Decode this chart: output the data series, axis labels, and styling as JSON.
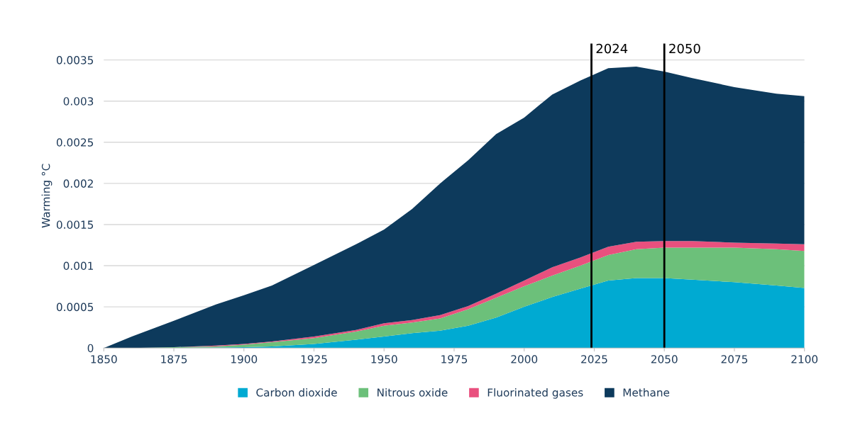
{
  "chart_data": {
    "type": "area",
    "stacked": true,
    "ylabel": "Warming °C",
    "x": [
      1850,
      1860,
      1875,
      1890,
      1900,
      1910,
      1925,
      1940,
      1950,
      1960,
      1970,
      1980,
      1990,
      2000,
      2010,
      2020,
      2030,
      2040,
      2050,
      2060,
      2075,
      2090,
      2100
    ],
    "series": [
      {
        "name": "Carbon dioxide",
        "color": "#00aad2",
        "values": [
          0,
          0,
          0,
          5e-06,
          1e-05,
          2e-05,
          5e-05,
          0.0001,
          0.00014,
          0.00018,
          0.00021,
          0.00027,
          0.00037,
          0.0005,
          0.00062,
          0.00072,
          0.00082,
          0.00085,
          0.00085,
          0.00083,
          0.0008,
          0.00076,
          0.00073
        ]
      },
      {
        "name": "Nitrous oxide",
        "color": "#6cc07a",
        "values": [
          0,
          0,
          1e-05,
          1.5e-05,
          3e-05,
          5e-05,
          7e-05,
          0.0001,
          0.00013,
          0.00013,
          0.00015,
          0.0002,
          0.00024,
          0.00025,
          0.00026,
          0.00028,
          0.00031,
          0.00035,
          0.00037,
          0.00039,
          0.00042,
          0.00044,
          0.00045
        ]
      },
      {
        "name": "Fluorinated gases",
        "color": "#e9507e",
        "values": [
          0,
          0,
          0,
          1e-05,
          1e-05,
          1e-05,
          2e-05,
          2e-05,
          3e-05,
          3e-05,
          4e-05,
          4e-05,
          5e-05,
          7e-05,
          0.0001,
          0.0001,
          0.0001,
          9e-05,
          8e-05,
          8e-05,
          6e-05,
          7e-05,
          8e-05
        ]
      },
      {
        "name": "Methane",
        "color": "#0d3a5c",
        "values": [
          0,
          0.00014,
          0.00032,
          0.0005,
          0.00059,
          0.00068,
          0.00087,
          0.00104,
          0.00114,
          0.00135,
          0.0016,
          0.00177,
          0.00194,
          0.00198,
          0.0021,
          0.00215,
          0.00217,
          0.00213,
          0.00206,
          0.00198,
          0.00189,
          0.00182,
          0.0018
        ]
      }
    ],
    "xlim": [
      1850,
      2100
    ],
    "xticks": [
      1850,
      1875,
      1900,
      1925,
      1950,
      1975,
      2000,
      2025,
      2050,
      2075,
      2100
    ],
    "ylim": [
      0,
      0.0037
    ],
    "yticks": [
      0,
      0.0005,
      0.001,
      0.0015,
      0.002,
      0.0025,
      0.003,
      0.0035
    ],
    "grid": "y",
    "legend": "bottom",
    "ref_lines": [
      {
        "axis": "x",
        "value": 2024,
        "label": "2024",
        "color": "#000000"
      },
      {
        "axis": "x",
        "value": 2050,
        "label": "2050",
        "color": "#000000"
      }
    ]
  }
}
